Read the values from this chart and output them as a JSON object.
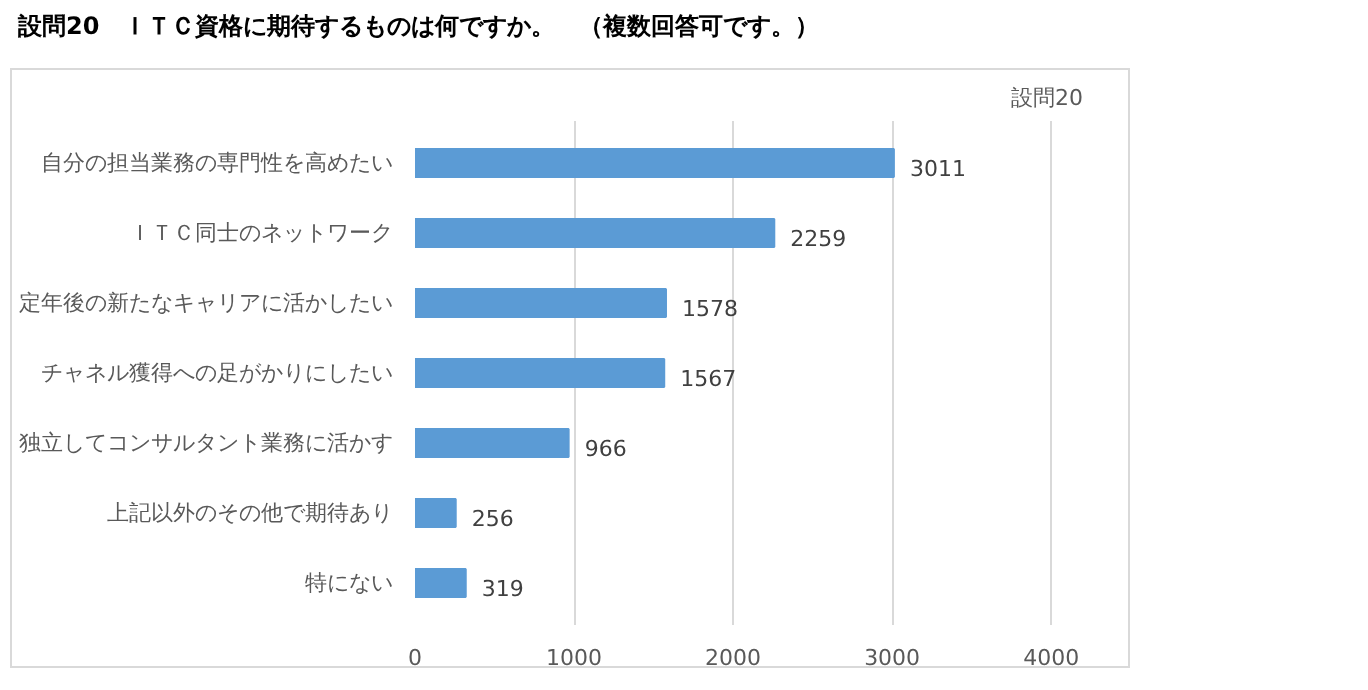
{
  "chart_data": {
    "type": "bar",
    "orientation": "horizontal",
    "title": "設問20　ＩＴＣ資格に期待するものは何ですか。　（複数回答可です。）",
    "subtitle": "設問20",
    "categories": [
      "自分の担当業務の専門性を高めたい",
      "ＩＴＣ同士のネットワーク",
      "定年後の新たなキャリアに活かしたい",
      "チャネル獲得への足がかりにしたい",
      "独立してコンサルタント業務に活かす",
      "上記以外のその他で期待あり",
      "特にない"
    ],
    "values": [
      3011,
      2259,
      1578,
      1567,
      966,
      256,
      319
    ],
    "color": "#5b9bd5",
    "xlim": [
      0,
      4000
    ],
    "xticks": [
      0,
      1000,
      2000,
      3000,
      4000
    ],
    "grid": "x",
    "data_labels": true
  }
}
